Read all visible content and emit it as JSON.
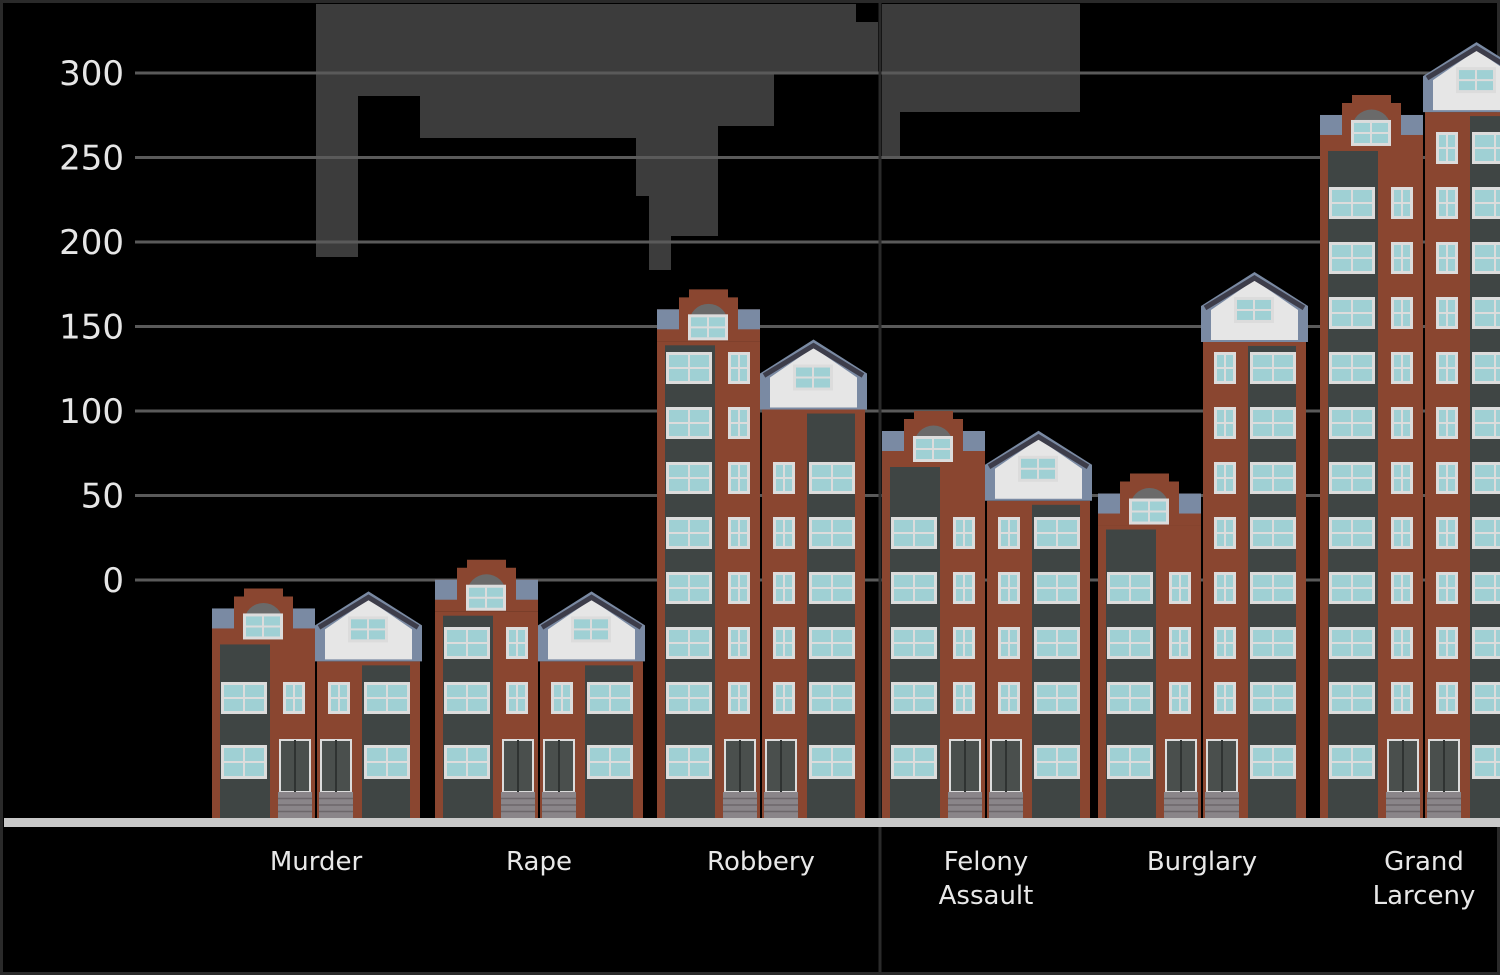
{
  "colors": {
    "background": "#000000",
    "grid": "#5a5a5a",
    "brick": "#8a4630",
    "brick_dark": "#5f2f21",
    "window": "#9fd0d4",
    "frame": "#dcdcdc",
    "slate": "#7a8aa3",
    "cloud": "#3f3f3f"
  },
  "chart_data": {
    "type": "bar",
    "title": "",
    "xlabel": "",
    "ylabel": "",
    "ylim": [
      -140,
      320
    ],
    "y_ticks": [
      0,
      50,
      100,
      150,
      200,
      250,
      300
    ],
    "y_tick_labels": [
      "0",
      "50",
      "100",
      "150",
      "200",
      "250",
      "300"
    ],
    "categories": [
      {
        "label": [
          "Murder"
        ],
        "values": [
          -5,
          -15
        ]
      },
      {
        "label": [
          "Rape"
        ],
        "values": [
          12,
          -15
        ]
      },
      {
        "label": [
          "Robbery"
        ],
        "values": [
          172,
          134
        ]
      },
      {
        "label": [
          "Felony",
          "Assault"
        ],
        "values": [
          100,
          80
        ]
      },
      {
        "label": [
          "Burglary"
        ],
        "values": [
          63,
          174
        ]
      },
      {
        "label": [
          "Grand",
          "Larceny"
        ],
        "values": [
          287,
          310
        ]
      }
    ],
    "clouds": [
      {
        "x_range": [
          "Murder",
          "Robbery"
        ],
        "bottom": 190
      },
      {
        "x_range": [
          "Felony Assault",
          "Felony Assault"
        ],
        "bottom": 250
      }
    ]
  }
}
